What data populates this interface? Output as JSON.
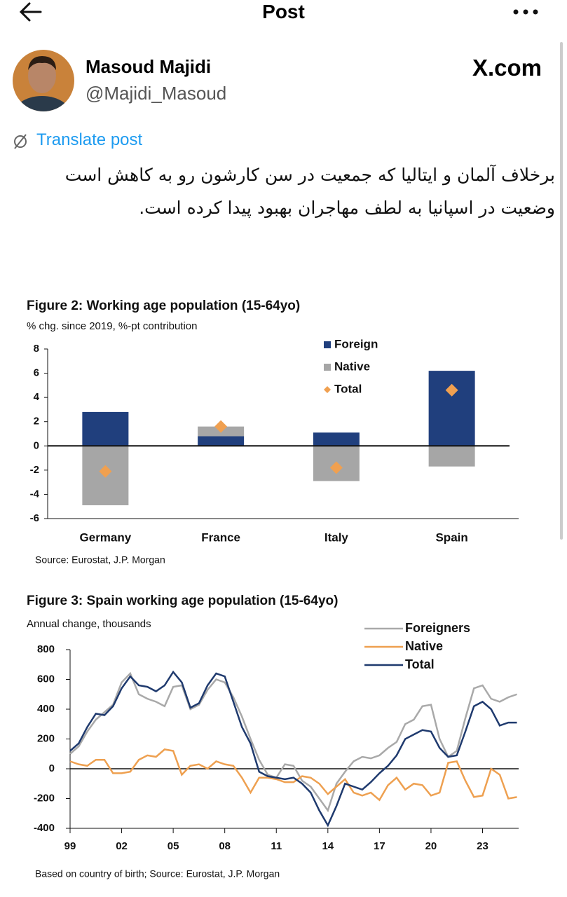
{
  "header": {
    "title": "Post"
  },
  "post": {
    "author": {
      "name": "Masoud Majidi",
      "handle": "@Majidi_Masoud"
    },
    "source": "X.com",
    "translate": "Translate post",
    "text": "برخلاف آلمان و ایتالیا که جمعیت در سن کارشون رو به کاهش است وضعیت در اسپانیا به لطف مهاجران بهبود پیدا کرده است."
  },
  "chart_data": [
    {
      "type": "bar",
      "stacked": true,
      "title": "Figure 2: Working age population (15-64yo)",
      "subtitle": "% chg. since 2019, %-pt contribution",
      "source": "Source: Eurostat, J.P. Morgan",
      "categories": [
        "Germany",
        "France",
        "Italy",
        "Spain"
      ],
      "series": [
        {
          "name": "Foreign",
          "color": "#203f7d",
          "values": [
            2.8,
            0.8,
            1.1,
            6.2
          ]
        },
        {
          "name": "Native",
          "color": "#a6a6a6",
          "values": [
            -4.9,
            0.8,
            -2.9,
            -1.7
          ]
        },
        {
          "name": "Total",
          "type": "scatter",
          "color": "#f0a050",
          "values": [
            -2.1,
            1.6,
            -1.8,
            4.6
          ]
        }
      ],
      "ylim": [
        -6,
        8
      ],
      "yticks": [
        -6,
        -4,
        -2,
        0,
        2,
        4,
        6,
        8
      ]
    },
    {
      "type": "line",
      "title": "Figure 3: Spain working age population (15-64yo)",
      "subtitle": "Annual change, thousands",
      "source": "Based on country of birth; Source: Eurostat, J.P. Morgan",
      "x": [
        1999,
        1999.5,
        2000,
        2000.5,
        2001,
        2001.5,
        2002,
        2002.5,
        2003,
        2003.5,
        2004,
        2004.5,
        2005,
        2005.5,
        2006,
        2006.5,
        2007,
        2007.5,
        2008,
        2008.5,
        2009,
        2009.5,
        2010,
        2010.5,
        2011,
        2011.5,
        2012,
        2012.5,
        2013,
        2013.5,
        2014,
        2014.5,
        2015,
        2015.5,
        2016,
        2016.5,
        2017,
        2017.5,
        2018,
        2018.5,
        2019,
        2019.5,
        2020,
        2020.5,
        2021,
        2021.5,
        2022,
        2022.5,
        2023,
        2023.5,
        2024,
        2024.5,
        2025
      ],
      "series": [
        {
          "name": "Foreigners",
          "color": "#a9a9a9",
          "values": [
            100,
            150,
            250,
            330,
            380,
            430,
            580,
            640,
            500,
            470,
            450,
            420,
            550,
            560,
            400,
            430,
            530,
            600,
            580,
            480,
            350,
            200,
            60,
            -40,
            -60,
            30,
            20,
            -80,
            -120,
            -200,
            -280,
            -100,
            -20,
            50,
            80,
            70,
            90,
            140,
            180,
            300,
            330,
            420,
            430,
            200,
            80,
            120,
            340,
            540,
            560,
            470,
            450,
            480,
            500
          ]
        },
        {
          "name": "Native",
          "color": "#eea050",
          "values": [
            50,
            30,
            20,
            60,
            60,
            -30,
            -30,
            -20,
            60,
            90,
            80,
            130,
            120,
            -40,
            20,
            30,
            0,
            50,
            30,
            20,
            -60,
            -160,
            -60,
            -60,
            -70,
            -90,
            -90,
            -50,
            -60,
            -100,
            -170,
            -120,
            -70,
            -160,
            -180,
            -160,
            -210,
            -110,
            -60,
            -140,
            -100,
            -110,
            -180,
            -160,
            40,
            50,
            -80,
            -190,
            -180,
            0,
            -40,
            -200,
            -190
          ]
        },
        {
          "name": "Total",
          "color": "#1f3a6e",
          "values": [
            120,
            170,
            280,
            370,
            360,
            420,
            540,
            620,
            560,
            550,
            520,
            560,
            650,
            580,
            410,
            440,
            560,
            640,
            620,
            450,
            280,
            170,
            -20,
            -50,
            -60,
            -70,
            -60,
            -100,
            -160,
            -280,
            -380,
            -250,
            -100,
            -120,
            -140,
            -90,
            -30,
            20,
            90,
            200,
            230,
            260,
            250,
            140,
            80,
            90,
            250,
            420,
            450,
            400,
            290,
            310,
            310
          ]
        }
      ],
      "xlim": [
        1999,
        2025.1
      ],
      "xticks": [
        {
          "value": 1999,
          "label": "99"
        },
        {
          "value": 2002,
          "label": "02"
        },
        {
          "value": 2005,
          "label": "05"
        },
        {
          "value": 2008,
          "label": "08"
        },
        {
          "value": 2011,
          "label": "11"
        },
        {
          "value": 2014,
          "label": "14"
        },
        {
          "value": 2017,
          "label": "17"
        },
        {
          "value": 2020,
          "label": "20"
        },
        {
          "value": 2023,
          "label": "23"
        }
      ],
      "ylim": [
        -400,
        800
      ],
      "yticks": [
        -400,
        -200,
        0,
        200,
        400,
        600,
        800
      ]
    }
  ]
}
